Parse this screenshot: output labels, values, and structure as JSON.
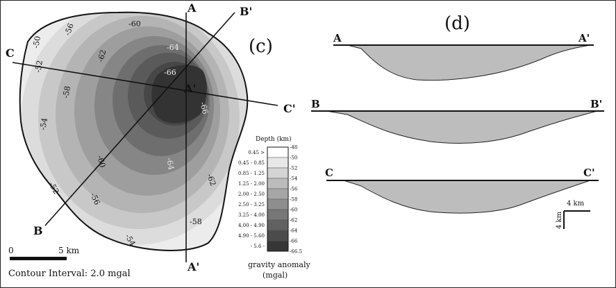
{
  "panel_c": {
    "label": "(c)",
    "profile_lines": [
      {
        "start": "A",
        "end": "A'"
      },
      {
        "start": "B",
        "end": "B'"
      },
      {
        "start": "C",
        "end": "C'"
      }
    ],
    "contour_labels": [
      "-60",
      "-56",
      "-50",
      "-52",
      "-62",
      "-64",
      "-66",
      "-58",
      "-54",
      "-66",
      "-60",
      "-64",
      "-62",
      "-52",
      "-56",
      "-58",
      "-54"
    ],
    "scale_bar": {
      "zero": "0",
      "end": "5 km"
    },
    "contour_interval": "Contour Interval: 2.0 mgal"
  },
  "legend": {
    "title": "Depth (km)",
    "depth_labels": [
      "0.45 >",
      "0.45 - 0.85",
      "0.85 - 1.25",
      "1.25 - 2.00",
      "2.00 - 2.50",
      "2.50 - 3.25",
      "3.25 - 4.00",
      "4.00 - 4.90",
      "4.90 - 5.60",
      "- 5.6 -"
    ],
    "anomaly_ticks": [
      "-48",
      "-50",
      "-52",
      "-54",
      "-56",
      "-58",
      "-60",
      "-62",
      "-64",
      "-66",
      "-66.5"
    ],
    "bottom_label_1": "gravity anomaly",
    "bottom_label_2": "(mgal)",
    "shade_colors": [
      "#ffffff",
      "#e8e8e8",
      "#d4d4d4",
      "#bcbcbc",
      "#a6a6a6",
      "#8e8e8e",
      "#777777",
      "#616161",
      "#4b4b4b",
      "#363636"
    ]
  },
  "panel_d": {
    "label": "(d)",
    "profiles": [
      {
        "start": "A",
        "end": "A'"
      },
      {
        "start": "B",
        "end": "B'"
      },
      {
        "start": "C",
        "end": "C'"
      }
    ],
    "scale": {
      "horizontal": "4 km",
      "vertical": "4 km"
    }
  }
}
